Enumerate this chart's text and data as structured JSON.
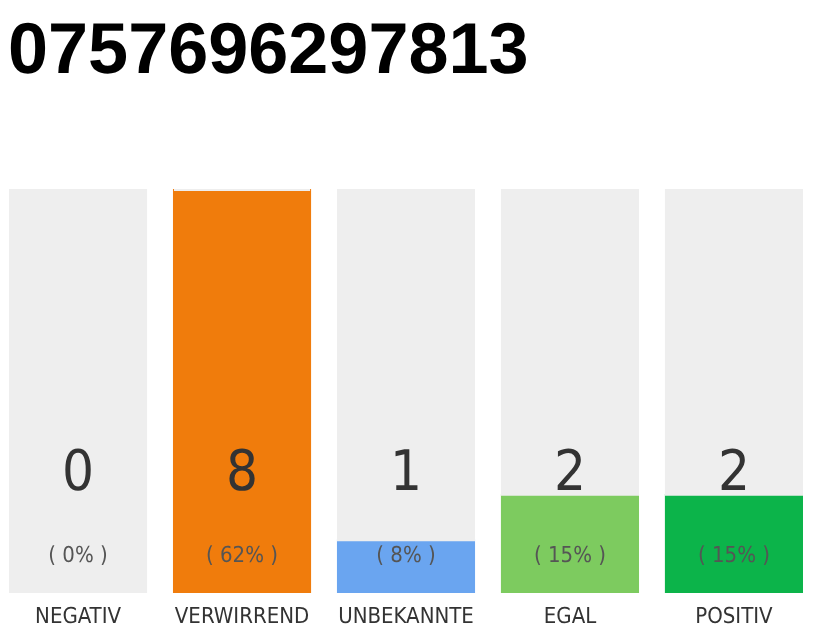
{
  "chart_data": {
    "type": "bar",
    "title": "0757696297813",
    "stacked": true,
    "categories": [
      "NEGATIV",
      "VERWIRREND",
      "UNBEKANNTE",
      "EGAL",
      "POSITIV"
    ],
    "series": [
      {
        "colors": [
          "#555555",
          "#f07c0c",
          "#6aa5f0",
          "#7dcb5f",
          "#0cb44a"
        ],
        "values": [
          0,
          62,
          8,
          15,
          15
        ],
        "value_labels": [
          "( 0% )",
          "( 62% )",
          "( 8% )",
          "( 15% )",
          "( 15% )"
        ]
      },
      {
        "color": "#eeeeee",
        "values": [
          62,
          0,
          54,
          47,
          47
        ]
      }
    ],
    "tick_labels": "x",
    "annotations": [
      "0",
      "8",
      "1",
      "2",
      "2"
    ]
  }
}
